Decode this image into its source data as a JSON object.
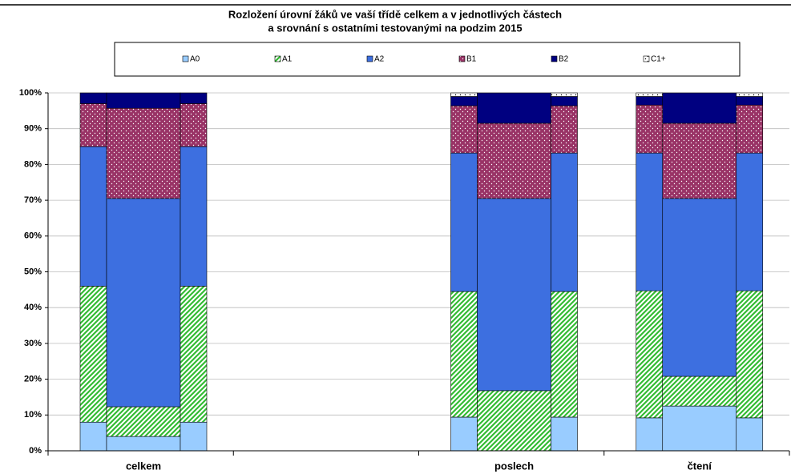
{
  "chart_data": {
    "type": "stacked-bar",
    "title": [
      "Rozložení úrovní žáků ve vaší třídě celkem a v jednotlivých částech",
      "a srovnání s ostatními testovanými na podzim 2015"
    ],
    "categories": [
      "celkem",
      null,
      "poslech",
      "čtení"
    ],
    "series": [
      {
        "name": "A0",
        "color": "#99ccff",
        "pattern": "solid",
        "values": [
          [
            8,
            4,
            8
          ],
          null,
          [
            9.4,
            0,
            9.4
          ],
          [
            9.2,
            12.5,
            9.2
          ]
        ]
      },
      {
        "name": "A1",
        "color": "#33bb33",
        "pattern": "diagonal",
        "values": [
          [
            38,
            8.3,
            38
          ],
          null,
          [
            35.1,
            16.8,
            35.1
          ],
          [
            35.5,
            8.3,
            35.5
          ]
        ]
      },
      {
        "name": "A2",
        "color": "#3d6fe0",
        "pattern": "solid",
        "values": [
          [
            39,
            58.2,
            39
          ],
          null,
          [
            38.7,
            53.7,
            38.7
          ],
          [
            38.5,
            49.7,
            38.5
          ]
        ]
      },
      {
        "name": "B1",
        "color": "#993366",
        "pattern": "dots",
        "values": [
          [
            12,
            25.2,
            12
          ],
          null,
          [
            13.2,
            21,
            13.2
          ],
          [
            13.4,
            21,
            13.4
          ]
        ]
      },
      {
        "name": "B2",
        "color": "#000080",
        "pattern": "solid",
        "values": [
          [
            3,
            4.3,
            3
          ],
          null,
          [
            2.6,
            8.5,
            2.6
          ],
          [
            2.4,
            8.5,
            2.4
          ]
        ]
      },
      {
        "name": "C1+",
        "color": "#ffffff",
        "pattern": "dots",
        "values": [
          [
            0,
            0,
            0
          ],
          null,
          [
            1,
            0,
            1
          ],
          [
            1,
            0,
            1
          ]
        ]
      }
    ],
    "ylim": [
      0,
      100
    ],
    "yticks": [
      {
        "value": 0,
        "label": "0%"
      },
      {
        "value": 10,
        "label": "10%"
      },
      {
        "value": 20,
        "label": "20%"
      },
      {
        "value": 30,
        "label": "30%"
      },
      {
        "value": 40,
        "label": "40%"
      },
      {
        "value": 50,
        "label": "50%"
      },
      {
        "value": 60,
        "label": "60%"
      },
      {
        "value": 70,
        "label": "70%"
      },
      {
        "value": 80,
        "label": "80%"
      },
      {
        "value": 90,
        "label": "90%"
      },
      {
        "value": 100,
        "label": "100%"
      }
    ],
    "grid": true,
    "legend": "top"
  }
}
